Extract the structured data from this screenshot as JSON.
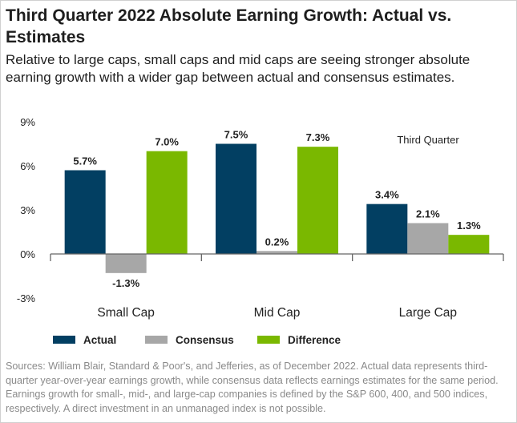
{
  "title": "Third Quarter 2022 Absolute Earning Growth: Actual vs. Estimates",
  "subtitle": "Relative to large caps, small caps and mid caps are seeing stronger absolute earning growth with a wider gap between actual and consensus estimates.",
  "sources": "Sources: William Blair, Standard & Poor's, and Jefferies, as of December 2022. Actual data represents third-quarter year-over-year earnings growth, while consensus data reflects earnings estimates for the same period. Earnings growth for small-, mid-, and large-cap companies is defined by the S&P 600, 400, and 500 indices, respectively. A direct investment in an unmanaged index is not possible.",
  "chart_data": {
    "type": "bar",
    "annotation": "Third Quarter",
    "categories": [
      "Small Cap",
      "Mid Cap",
      "Large Cap"
    ],
    "series": [
      {
        "name": "Actual",
        "color": "#023f62",
        "values": [
          5.7,
          7.5,
          3.4
        ],
        "labels": [
          "5.7%",
          "7.5%",
          "3.4%"
        ]
      },
      {
        "name": "Consensus",
        "color": "#a7a7a7",
        "values": [
          -1.3,
          0.2,
          2.1
        ],
        "labels": [
          "-1.3%",
          "0.2%",
          "2.1%"
        ]
      },
      {
        "name": "Difference",
        "color": "#7ab800",
        "values": [
          7.0,
          7.3,
          1.3
        ],
        "labels": [
          "7.0%",
          "7.3%",
          "1.3%"
        ]
      }
    ],
    "yticks": [
      "9%",
      "6%",
      "3%",
      "0%",
      "-3%"
    ],
    "ytick_values": [
      9,
      6,
      3,
      0,
      -3
    ],
    "ylim": [
      -3,
      9
    ],
    "grid": false,
    "legend_position": "bottom-left"
  }
}
